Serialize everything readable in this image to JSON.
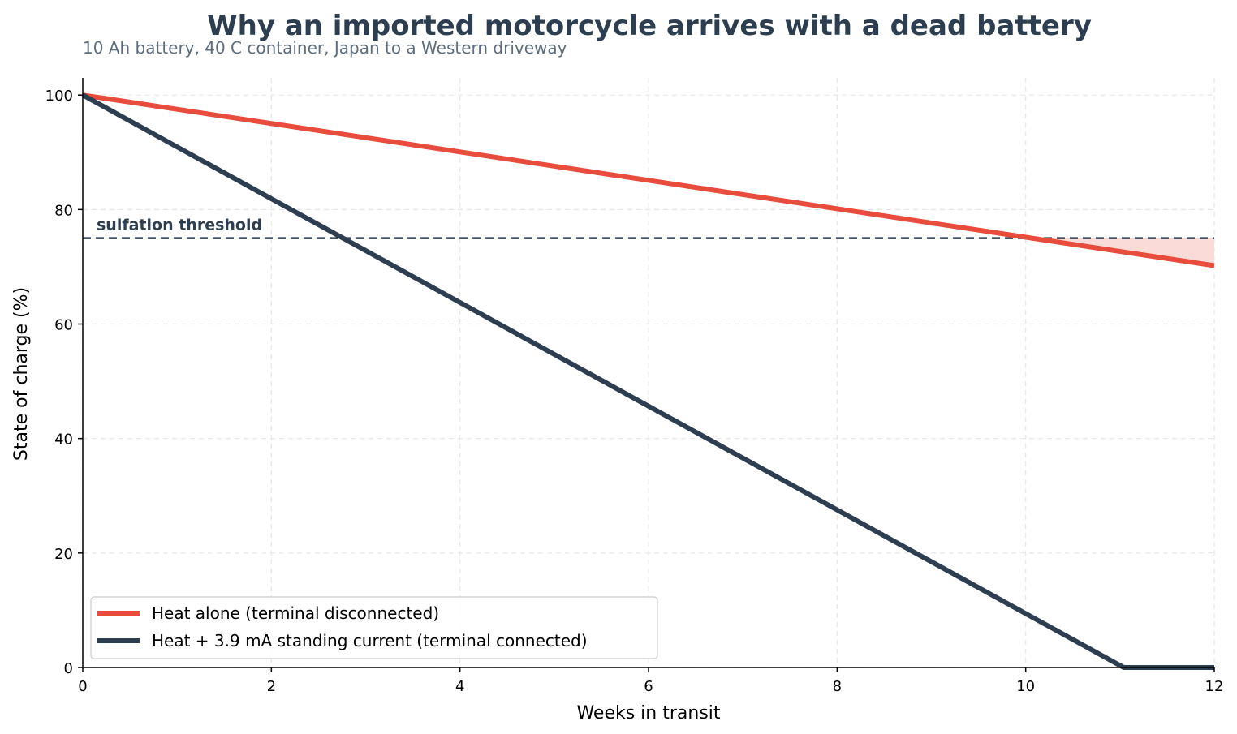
{
  "chart_data": {
    "type": "line",
    "title": "Why an imported motorcycle arrives with a dead battery",
    "subtitle": "10 Ah battery, 40 C container, Japan to a Western driveway",
    "xlabel": "Weeks in transit",
    "ylabel": "State of charge (%)",
    "xlim": [
      0,
      12
    ],
    "ylim": [
      0,
      103
    ],
    "xticks": [
      0,
      2,
      4,
      6,
      8,
      10,
      12
    ],
    "yticks": [
      0,
      20,
      40,
      60,
      80,
      100
    ],
    "grid": true,
    "legend_position": "lower-left",
    "series": [
      {
        "name": "Heat alone (terminal disconnected)",
        "color": "#e74c3c",
        "x": [
          0,
          12
        ],
        "y": [
          100,
          70.2
        ]
      },
      {
        "name": "Heat + 3.9 mA standing current (terminal connected)",
        "color": "#2c3e50",
        "x": [
          0,
          11.04,
          12
        ],
        "y": [
          100,
          0,
          0
        ]
      }
    ],
    "reference_lines": [
      {
        "label": "sulfation threshold",
        "y": 75,
        "color": "#2c3e50",
        "style": "dashed"
      }
    ],
    "shaded_region": {
      "description": "below threshold, heat alone",
      "color": "#fadbd8",
      "x_start": 9.7,
      "x_end": 12
    }
  }
}
